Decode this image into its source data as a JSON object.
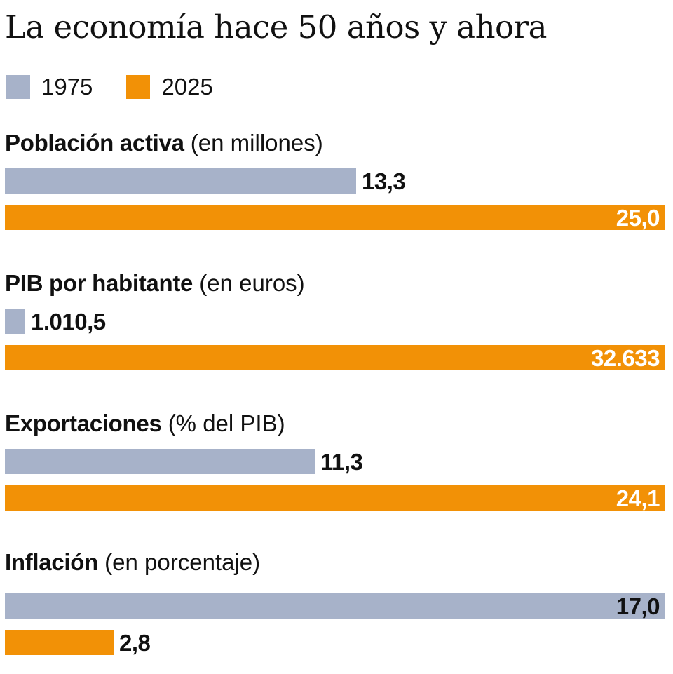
{
  "chart_data": {
    "type": "bar",
    "orientation": "horizontal",
    "title": "La economía hace 50 años y ahora",
    "legend": {
      "position": "top-left",
      "entries": [
        {
          "label": "1975",
          "color": "#a7b2c9"
        },
        {
          "label": "2025",
          "color": "#f29106"
        }
      ]
    },
    "scale": "independent-per-group",
    "groups": [
      {
        "name": "Población activa",
        "unit": "(en millones)",
        "values": [
          {
            "series": "1975",
            "value": 13.3,
            "label": "13,3"
          },
          {
            "series": "2025",
            "value": 25.0,
            "label": "25,0"
          }
        ]
      },
      {
        "name": "PIB por habitante",
        "unit": "(en euros)",
        "values": [
          {
            "series": "1975",
            "value": 1010.5,
            "label": "1.010,5"
          },
          {
            "series": "2025",
            "value": 32633,
            "label": "32.633"
          }
        ]
      },
      {
        "name": "Exportaciones",
        "unit": "(% del PIB)",
        "values": [
          {
            "series": "1975",
            "value": 11.3,
            "label": "11,3"
          },
          {
            "series": "2025",
            "value": 24.1,
            "label": "24,1"
          }
        ]
      },
      {
        "name": "Inflación",
        "unit": "(en porcentaje)",
        "values": [
          {
            "series": "1975",
            "value": 17.0,
            "label": "17,0"
          },
          {
            "series": "2025",
            "value": 2.8,
            "label": "2,8"
          }
        ]
      }
    ]
  }
}
